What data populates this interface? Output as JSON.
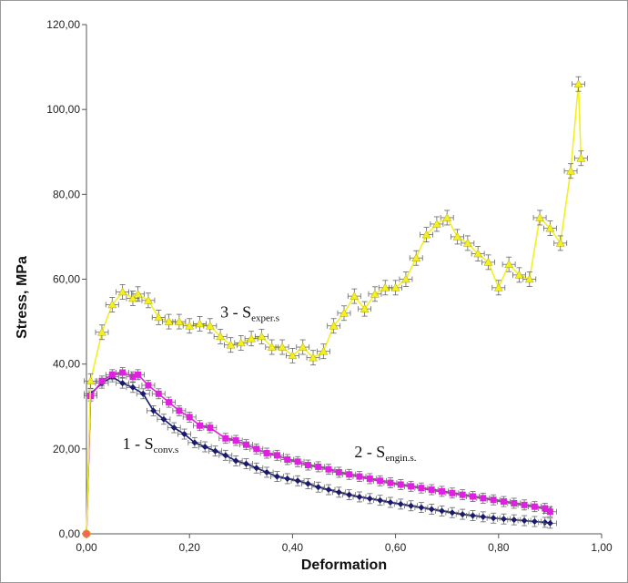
{
  "chart_data": {
    "type": "line",
    "xlabel": "Deformation",
    "ylabel": "Stress, MPa",
    "xlim": [
      0,
      1
    ],
    "ylim": [
      0,
      120
    ],
    "x_ticks": [
      "0,00",
      "0,20",
      "0,40",
      "0,60",
      "0,80",
      "1,00"
    ],
    "y_ticks": [
      "0,00",
      "20,00",
      "40,00",
      "60,00",
      "80,00",
      "100,00",
      "120,00"
    ],
    "grid": false,
    "legend": "none",
    "series": [
      {
        "id": "conv",
        "color": "#1a1a6e",
        "marker": "diamond",
        "points": [
          [
            0,
            0
          ],
          [
            0.008,
            33
          ],
          [
            0.03,
            35.5
          ],
          [
            0.05,
            37
          ],
          [
            0.07,
            35.5
          ],
          [
            0.09,
            34.5
          ],
          [
            0.11,
            33
          ],
          [
            0.13,
            29
          ],
          [
            0.15,
            27
          ],
          [
            0.17,
            25
          ],
          [
            0.19,
            23.5
          ],
          [
            0.21,
            21.5
          ],
          [
            0.23,
            20.5
          ],
          [
            0.25,
            19.5
          ],
          [
            0.27,
            18.5
          ],
          [
            0.29,
            17.2
          ],
          [
            0.31,
            16.5
          ],
          [
            0.33,
            15.5
          ],
          [
            0.35,
            14.5
          ],
          [
            0.37,
            13.5
          ],
          [
            0.39,
            13
          ],
          [
            0.41,
            12.5
          ],
          [
            0.43,
            11.8
          ],
          [
            0.45,
            11
          ],
          [
            0.47,
            10.4
          ],
          [
            0.49,
            9.8
          ],
          [
            0.51,
            9.2
          ],
          [
            0.53,
            8.7
          ],
          [
            0.55,
            8.3
          ],
          [
            0.57,
            7.9
          ],
          [
            0.59,
            7.4
          ],
          [
            0.61,
            7
          ],
          [
            0.63,
            6.6
          ],
          [
            0.65,
            6.2
          ],
          [
            0.67,
            5.8
          ],
          [
            0.69,
            5.4
          ],
          [
            0.71,
            5
          ],
          [
            0.73,
            4.6
          ],
          [
            0.75,
            4.3
          ],
          [
            0.77,
            4
          ],
          [
            0.79,
            3.7
          ],
          [
            0.81,
            3.5
          ],
          [
            0.83,
            3.3
          ],
          [
            0.85,
            3.1
          ],
          [
            0.87,
            2.9
          ],
          [
            0.89,
            2.7
          ],
          [
            0.9,
            2.5
          ]
        ]
      },
      {
        "id": "engin",
        "color": "#e020e0",
        "marker": "square",
        "points": [
          [
            0,
            0
          ],
          [
            0.008,
            32.5
          ],
          [
            0.03,
            36
          ],
          [
            0.05,
            37.5
          ],
          [
            0.07,
            38
          ],
          [
            0.09,
            37
          ],
          [
            0.1,
            37.5
          ],
          [
            0.12,
            35
          ],
          [
            0.14,
            33
          ],
          [
            0.16,
            31
          ],
          [
            0.18,
            29
          ],
          [
            0.2,
            27.5
          ],
          [
            0.22,
            25.5
          ],
          [
            0.24,
            25
          ],
          [
            0.27,
            22.5
          ],
          [
            0.29,
            22
          ],
          [
            0.31,
            21
          ],
          [
            0.33,
            20
          ],
          [
            0.35,
            19
          ],
          [
            0.37,
            18.5
          ],
          [
            0.39,
            17.5
          ],
          [
            0.41,
            17
          ],
          [
            0.43,
            16.2
          ],
          [
            0.45,
            15.8
          ],
          [
            0.47,
            15.2
          ],
          [
            0.49,
            14.5
          ],
          [
            0.51,
            14
          ],
          [
            0.53,
            13.5
          ],
          [
            0.55,
            13
          ],
          [
            0.57,
            12.5
          ],
          [
            0.59,
            12
          ],
          [
            0.61,
            11.6
          ],
          [
            0.63,
            11.2
          ],
          [
            0.65,
            10.8
          ],
          [
            0.67,
            10.4
          ],
          [
            0.69,
            10
          ],
          [
            0.71,
            9.6
          ],
          [
            0.73,
            9.2
          ],
          [
            0.75,
            8.8
          ],
          [
            0.77,
            8.4
          ],
          [
            0.79,
            8
          ],
          [
            0.81,
            7.6
          ],
          [
            0.83,
            7.2
          ],
          [
            0.85,
            6.8
          ],
          [
            0.87,
            6.4
          ],
          [
            0.89,
            6
          ],
          [
            0.9,
            5.2
          ]
        ]
      },
      {
        "id": "exper",
        "color": "#f2f020",
        "marker": "triangle",
        "points": [
          [
            0,
            0
          ],
          [
            0.008,
            36
          ],
          [
            0.03,
            47.5
          ],
          [
            0.05,
            54
          ],
          [
            0.07,
            57
          ],
          [
            0.09,
            55.5
          ],
          [
            0.1,
            56.5
          ],
          [
            0.12,
            55
          ],
          [
            0.14,
            51
          ],
          [
            0.16,
            50
          ],
          [
            0.18,
            50
          ],
          [
            0.2,
            49
          ],
          [
            0.22,
            49.5
          ],
          [
            0.24,
            49
          ],
          [
            0.26,
            46.5
          ],
          [
            0.28,
            44.5
          ],
          [
            0.3,
            45
          ],
          [
            0.32,
            46
          ],
          [
            0.34,
            46.5
          ],
          [
            0.36,
            44
          ],
          [
            0.38,
            44
          ],
          [
            0.4,
            42
          ],
          [
            0.42,
            44
          ],
          [
            0.44,
            41.5
          ],
          [
            0.46,
            43
          ],
          [
            0.48,
            49
          ],
          [
            0.5,
            52
          ],
          [
            0.52,
            56
          ],
          [
            0.54,
            53
          ],
          [
            0.56,
            56.5
          ],
          [
            0.58,
            58
          ],
          [
            0.6,
            58
          ],
          [
            0.62,
            60
          ],
          [
            0.64,
            65
          ],
          [
            0.66,
            70.5
          ],
          [
            0.68,
            73
          ],
          [
            0.7,
            74.5
          ],
          [
            0.72,
            70
          ],
          [
            0.74,
            68.5
          ],
          [
            0.76,
            66
          ],
          [
            0.78,
            64
          ],
          [
            0.8,
            58
          ],
          [
            0.82,
            63.5
          ],
          [
            0.84,
            61
          ],
          [
            0.86,
            60
          ],
          [
            0.88,
            74.5
          ],
          [
            0.9,
            72
          ],
          [
            0.92,
            68.5
          ],
          [
            0.94,
            85.5
          ],
          [
            0.955,
            106
          ],
          [
            0.96,
            88.5
          ]
        ]
      }
    ],
    "annotations": [
      {
        "main": "3 - S",
        "sub": "exper.s",
        "x": 0.26,
        "y": 51
      },
      {
        "main": "1 - S",
        "sub": "conv.s",
        "x": 0.07,
        "y": 20
      },
      {
        "main": "2 - S",
        "sub": "engin.s.",
        "x": 0.52,
        "y": 18
      }
    ]
  }
}
